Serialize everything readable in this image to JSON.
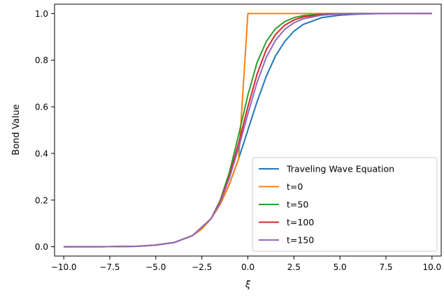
{
  "chart_data": {
    "type": "line",
    "title": "",
    "xlabel": "ξ",
    "ylabel": "Bond Value",
    "xlim": [
      -10.5,
      10.5
    ],
    "ylim": [
      -0.04,
      1.04
    ],
    "xticks": [
      -10.0,
      -7.5,
      -5.0,
      -2.5,
      0.0,
      2.5,
      5.0,
      7.5,
      10.0
    ],
    "xtick_labels": [
      "−10.0",
      "−7.5",
      "−5.0",
      "−2.5",
      "0.0",
      "2.5",
      "5.0",
      "7.5",
      "10.0"
    ],
    "yticks": [
      0.0,
      0.2,
      0.4,
      0.6,
      0.8,
      1.0
    ],
    "ytick_labels": [
      "0.0",
      "0.2",
      "0.4",
      "0.6",
      "0.8",
      "1.0"
    ],
    "grid": false,
    "legend": "lower-right",
    "series": [
      {
        "name": "Traveling Wave Equation",
        "color": "#1f77b4",
        "x": [
          -10,
          -8,
          -6,
          -5,
          -4,
          -3,
          -2,
          -1.5,
          -1,
          -0.5,
          0,
          0.5,
          1,
          1.5,
          2,
          2.5,
          3,
          4,
          5,
          6,
          7,
          8,
          9,
          10
        ],
        "y": [
          0.0,
          0.0,
          0.002,
          0.007,
          0.018,
          0.048,
          0.12,
          0.182,
          0.269,
          0.378,
          0.5,
          0.622,
          0.731,
          0.818,
          0.88,
          0.924,
          0.953,
          0.982,
          0.993,
          0.9975,
          0.9991,
          0.9997,
          0.9999,
          1.0
        ]
      },
      {
        "name": "t=0",
        "color": "#ff7f0e",
        "x": [
          -10,
          -8,
          -6,
          -5,
          -4,
          -3,
          -2.5,
          -2,
          -1.5,
          -1,
          -0.5,
          0,
          10
        ],
        "y": [
          0.0,
          0.0,
          0.002,
          0.007,
          0.018,
          0.048,
          0.076,
          0.12,
          0.182,
          0.269,
          0.378,
          1.0,
          1.0
        ]
      },
      {
        "name": "t=50",
        "color": "#2ca02c",
        "x": [
          -10,
          -8,
          -6,
          -5,
          -4,
          -3,
          -2,
          -1.5,
          -1,
          -0.5,
          0,
          0.5,
          1,
          1.5,
          2,
          2.5,
          3,
          4,
          5,
          6,
          8,
          10
        ],
        "y": [
          0.0,
          0.0,
          0.002,
          0.007,
          0.018,
          0.048,
          0.12,
          0.2,
          0.32,
          0.48,
          0.65,
          0.79,
          0.88,
          0.935,
          0.965,
          0.982,
          0.991,
          0.998,
          0.9995,
          1.0,
          1.0,
          1.0
        ]
      },
      {
        "name": "t=100",
        "color": "#d62728",
        "x": [
          -10,
          -8,
          -6,
          -5,
          -4,
          -3,
          -2,
          -1.5,
          -1,
          -0.5,
          0,
          0.5,
          1,
          1.5,
          2,
          2.5,
          3,
          4,
          5,
          6,
          8,
          10
        ],
        "y": [
          0.0,
          0.0,
          0.002,
          0.007,
          0.018,
          0.048,
          0.12,
          0.195,
          0.305,
          0.445,
          0.6,
          0.74,
          0.845,
          0.91,
          0.95,
          0.972,
          0.985,
          0.996,
          0.999,
          0.9997,
          1.0,
          1.0
        ]
      },
      {
        "name": "t=150",
        "color": "#9467bd",
        "x": [
          -10,
          -8,
          -6,
          -5,
          -4,
          -3,
          -2,
          -1.5,
          -1,
          -0.5,
          0,
          0.5,
          1,
          1.5,
          2,
          2.5,
          3,
          4,
          5,
          6,
          8,
          10
        ],
        "y": [
          0.0,
          0.0,
          0.002,
          0.007,
          0.018,
          0.048,
          0.12,
          0.19,
          0.295,
          0.425,
          0.57,
          0.705,
          0.812,
          0.885,
          0.932,
          0.96,
          0.977,
          0.993,
          0.998,
          0.9994,
          1.0,
          1.0
        ]
      }
    ]
  }
}
